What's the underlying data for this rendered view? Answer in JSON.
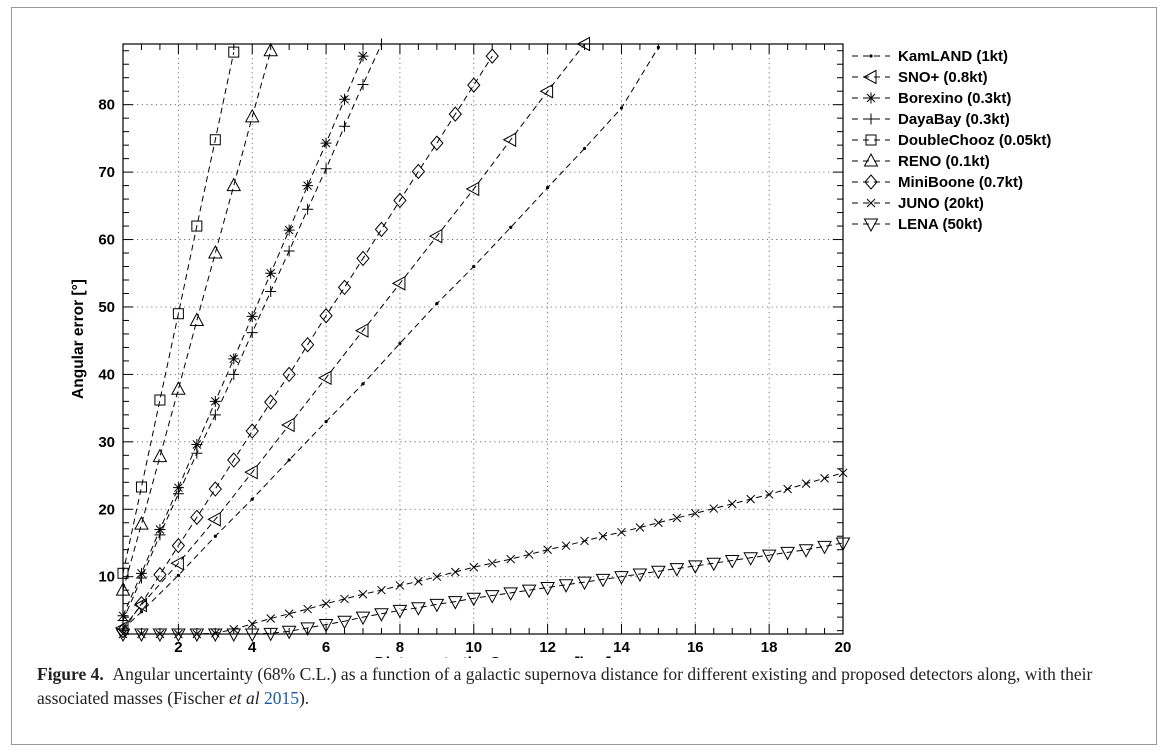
{
  "caption": {
    "label": "Figure 4.",
    "text_before": "Angular uncertainty (68% C.L.) as a function of a galactic supernova distance for different existing and proposed detectors along, with their associated masses (Fischer ",
    "et_al": "et al",
    "year": "2015",
    "text_after": ")."
  },
  "chart_data": {
    "type": "line",
    "title": "",
    "xlabel": "Distance to the Supernova [kpc]",
    "ylabel": "Angular error [°]",
    "xlim": [
      0.5,
      20
    ],
    "ylim": [
      1.5,
      89
    ],
    "xticks": [
      2,
      4,
      6,
      8,
      10,
      12,
      14,
      16,
      18,
      20
    ],
    "yticks": [
      10,
      20,
      30,
      40,
      50,
      60,
      70,
      80
    ],
    "grid": true,
    "legend_position": "outside-right",
    "series": [
      {
        "name": "KamLAND (1kt)",
        "marker": "dot",
        "x": [
          0.5,
          1,
          2,
          3,
          4,
          5,
          6,
          7,
          8,
          9,
          10,
          11,
          12,
          13,
          14,
          15
        ],
        "y": [
          2.2,
          4.8,
          10.2,
          16.0,
          21.5,
          27.3,
          33.0,
          38.6,
          44.6,
          50.5,
          56.0,
          61.8,
          67.7,
          73.5,
          79.5,
          88.5
        ]
      },
      {
        "name": "SNO+ (0.8kt)",
        "marker": "triangle-left",
        "x": [
          0.5,
          1,
          2,
          3,
          4,
          5,
          6,
          7,
          8,
          9,
          10,
          11,
          12,
          13
        ],
        "y": [
          2.4,
          5.8,
          12.0,
          18.5,
          25.5,
          32.5,
          39.5,
          46.5,
          53.5,
          60.5,
          67.5,
          74.8,
          82.0,
          89.0
        ]
      },
      {
        "name": "Borexino (0.3kt)",
        "marker": "asterisk",
        "x": [
          0.5,
          1,
          1.5,
          2,
          2.5,
          3,
          3.5,
          4,
          4.5,
          5,
          5.5,
          6,
          6.5,
          7
        ],
        "y": [
          4.2,
          10.5,
          17.0,
          23.2,
          29.6,
          36.0,
          42.3,
          48.6,
          55.0,
          61.4,
          68.0,
          74.3,
          80.8,
          87.2
        ]
      },
      {
        "name": "DayaBay (0.3kt)",
        "marker": "plus",
        "x": [
          0.5,
          1,
          1.5,
          2,
          2.5,
          3,
          3.5,
          4,
          4.5,
          5,
          5.5,
          6,
          6.5,
          7,
          7.5
        ],
        "y": [
          3.5,
          9.8,
          16.2,
          22.3,
          28.3,
          34.0,
          40.0,
          46.2,
          52.3,
          58.3,
          64.5,
          70.5,
          76.8,
          83.0,
          89.0
        ]
      },
      {
        "name": "DoubleChooz (0.05kt)",
        "marker": "square",
        "x": [
          0.5,
          1,
          1.5,
          2,
          2.5,
          3,
          3.5
        ],
        "y": [
          10.5,
          23.3,
          36.2,
          49.0,
          62.0,
          74.8,
          87.8
        ]
      },
      {
        "name": "RENO (0.1kt)",
        "marker": "triangle-up",
        "x": [
          0.5,
          1,
          1.5,
          2,
          2.5,
          3,
          3.5,
          4,
          4.5
        ],
        "y": [
          8.0,
          17.8,
          27.8,
          37.8,
          48.0,
          58.0,
          68.0,
          78.2,
          88.0
        ]
      },
      {
        "name": "MiniBoone (0.7kt)",
        "marker": "diamond",
        "x": [
          0.5,
          1,
          1.5,
          2,
          2.5,
          3,
          3.5,
          4,
          4.5,
          5,
          5.5,
          6,
          6.5,
          7,
          7.5,
          8,
          8.5,
          9,
          9.5,
          10,
          10.5
        ],
        "y": [
          2.0,
          6.0,
          10.3,
          14.6,
          18.8,
          23.0,
          27.3,
          31.6,
          35.9,
          40.0,
          44.4,
          48.7,
          52.9,
          57.2,
          61.5,
          65.8,
          70.1,
          74.3,
          78.6,
          82.9,
          87.2
        ]
      },
      {
        "name": "JUNO (20kt)",
        "marker": "x",
        "x": [
          0.5,
          1,
          1.5,
          2,
          2.5,
          3,
          3.5,
          4,
          4.5,
          5,
          5.5,
          6,
          6.5,
          7,
          7.5,
          8,
          8.5,
          9,
          9.5,
          10,
          10.5,
          11,
          11.5,
          12,
          12.5,
          13,
          13.5,
          14,
          14.5,
          15,
          15.5,
          16,
          16.5,
          17,
          17.5,
          18,
          18.5,
          19,
          19.5,
          20
        ],
        "y": [
          1.5,
          1.5,
          1.5,
          1.5,
          1.5,
          1.6,
          2.2,
          3.0,
          3.8,
          4.5,
          5.2,
          6.0,
          6.7,
          7.4,
          8.0,
          8.7,
          9.3,
          10.0,
          10.7,
          11.4,
          12.0,
          12.6,
          13.3,
          14.0,
          14.6,
          15.3,
          16.0,
          16.6,
          17.3,
          18.0,
          18.7,
          19.4,
          20.1,
          20.8,
          21.5,
          22.2,
          23.0,
          23.8,
          24.6,
          25.4
        ]
      },
      {
        "name": "LENA (50kt)",
        "marker": "triangle-down",
        "x": [
          0.5,
          1,
          1.5,
          2,
          2.5,
          3,
          3.5,
          4,
          4.5,
          5,
          5.5,
          6,
          6.5,
          7,
          7.5,
          8,
          8.5,
          9,
          9.5,
          10,
          10.5,
          11,
          11.5,
          12,
          12.5,
          13,
          13.5,
          14,
          14.5,
          15,
          15.5,
          16,
          16.5,
          17,
          17.5,
          18,
          18.5,
          19,
          19.5,
          20
        ],
        "y": [
          1.5,
          1.5,
          1.5,
          1.5,
          1.5,
          1.5,
          1.5,
          1.5,
          1.6,
          1.9,
          2.4,
          2.9,
          3.4,
          4.0,
          4.5,
          5.0,
          5.4,
          5.9,
          6.3,
          6.8,
          7.2,
          7.6,
          8.0,
          8.4,
          8.8,
          9.2,
          9.6,
          10.0,
          10.4,
          10.8,
          11.2,
          11.6,
          12.0,
          12.4,
          12.8,
          13.2,
          13.6,
          14.0,
          14.5,
          15.0
        ]
      }
    ]
  }
}
